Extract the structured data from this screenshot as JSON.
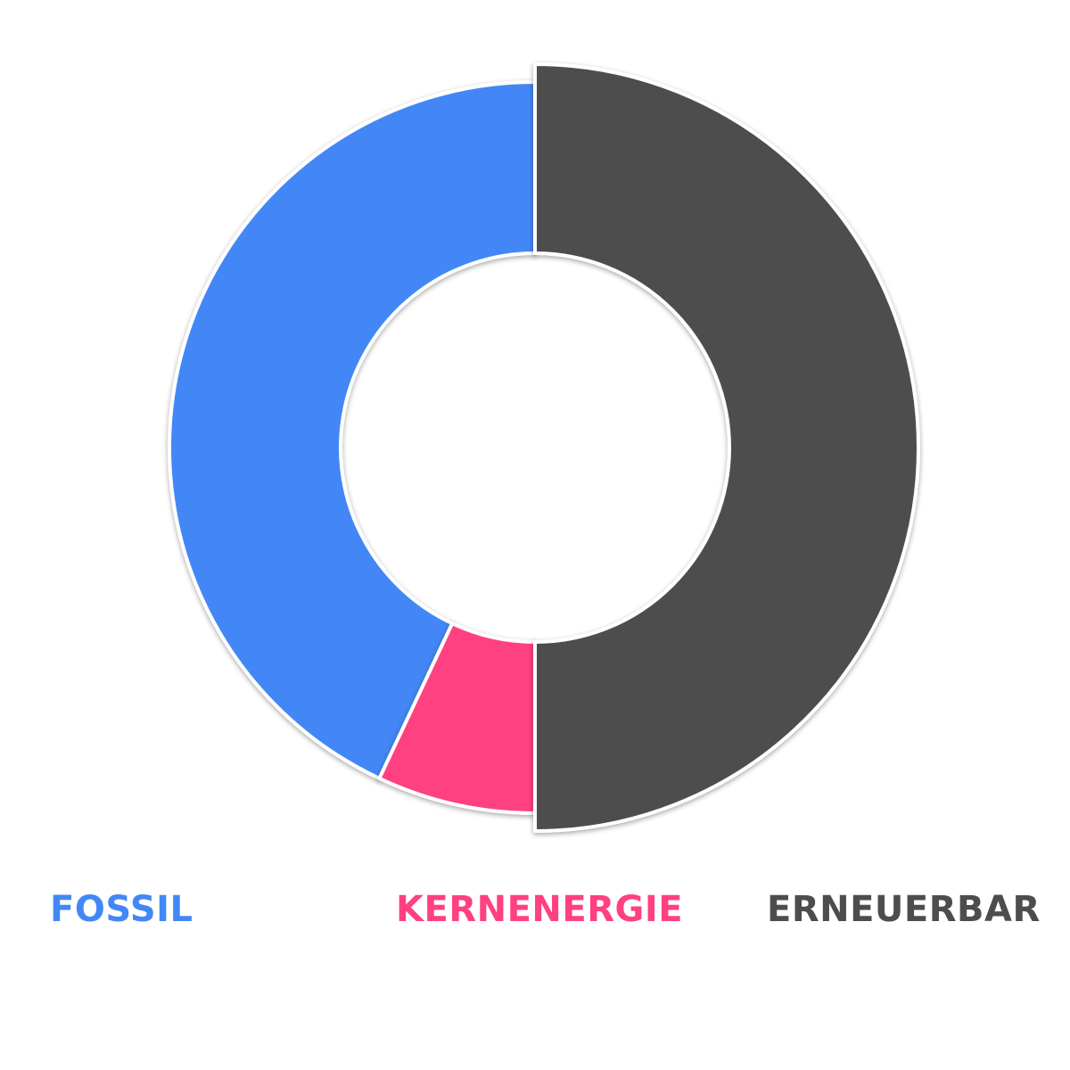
{
  "chart_data": {
    "type": "pie",
    "variant": "donut",
    "title": "",
    "categories": [
      "FOSSIL",
      "KERNENERGIE",
      "ERNEUERBAR"
    ],
    "values": [
      43,
      7,
      50
    ],
    "colors": [
      "#4287f5",
      "#ff4081",
      "#4d4d4d"
    ],
    "highlighted": "ERNEUERBAR",
    "legend_position": "bottom"
  }
}
